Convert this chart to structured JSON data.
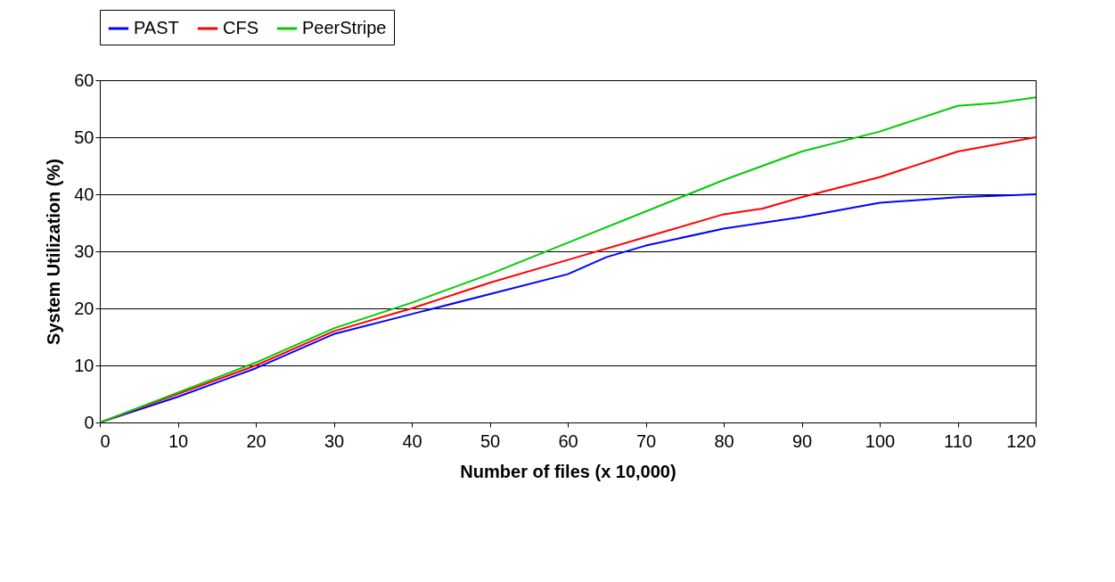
{
  "chart_data": {
    "type": "line",
    "xlabel": "Number of files (x 10,000)",
    "ylabel": "System Utilization (%)",
    "xlim": [
      0,
      120
    ],
    "xticks": [
      0,
      10,
      20,
      30,
      40,
      50,
      60,
      70,
      80,
      90,
      100,
      110,
      120
    ],
    "ylim": [
      0,
      60
    ],
    "yticks": [
      0,
      10,
      20,
      30,
      40,
      50,
      60
    ],
    "grid": "y",
    "legend": "top",
    "line_style": "solid",
    "marker": "none",
    "series": [
      {
        "name": "PAST",
        "color": "#0000ff",
        "x": [
          0,
          10,
          20,
          30,
          40,
          50,
          60,
          65,
          70,
          80,
          85,
          90,
          100,
          110,
          120
        ],
        "values": [
          0,
          4.5,
          9.5,
          15.5,
          19,
          22.5,
          26,
          29,
          31,
          34,
          35,
          36,
          38.5,
          39.5,
          40
        ]
      },
      {
        "name": "CFS",
        "color": "#ff0000",
        "x": [
          0,
          20,
          30,
          40,
          50,
          60,
          70,
          80,
          85,
          90,
          100,
          110,
          120
        ],
        "values": [
          0,
          10,
          16,
          20,
          24.5,
          28.5,
          32.5,
          36.5,
          37.5,
          39.5,
          43,
          47.5,
          50
        ]
      },
      {
        "name": "PeerStripe",
        "color": "#00cc00",
        "x": [
          0,
          20,
          30,
          40,
          50,
          60,
          70,
          80,
          90,
          100,
          110,
          115,
          120
        ],
        "values": [
          0,
          10.5,
          16.5,
          21,
          26,
          31.5,
          37,
          42.5,
          47.5,
          51,
          55.5,
          56,
          57
        ]
      }
    ]
  }
}
